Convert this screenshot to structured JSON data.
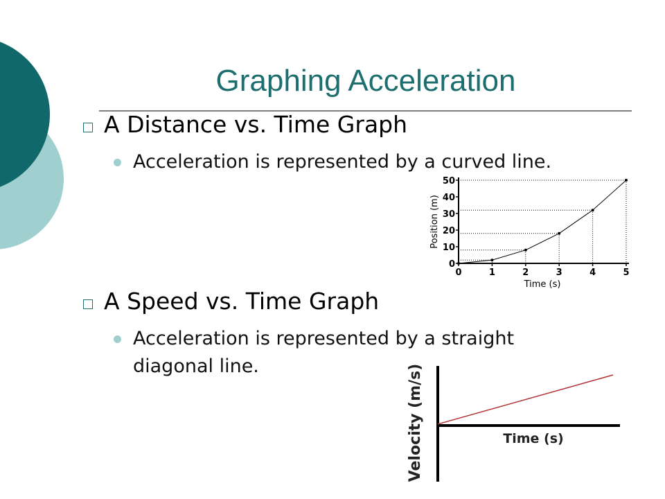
{
  "slide": {
    "title": "Graphing Acceleration",
    "sections": [
      {
        "heading": "A Distance vs. Time Graph",
        "points": [
          "Acceleration is represented by a curved line."
        ]
      },
      {
        "heading": "A Speed vs. Time Graph",
        "points": [
          "Acceleration is represented by a straight diagonal line."
        ]
      }
    ],
    "speed_graph": {
      "x_label": "Time (s)",
      "y_label": "Velocity (m/s)"
    }
  },
  "chart_data": {
    "type": "line",
    "x_label": "Time (s)",
    "y_label": "Position (m)",
    "x": [
      0,
      1,
      2,
      3,
      4,
      5
    ],
    "series": [
      {
        "color": "#000000",
        "values": [
          0,
          2,
          8,
          18,
          32,
          50
        ]
      }
    ],
    "xlim": [
      0,
      5
    ],
    "xticks": [
      0,
      1,
      2,
      3,
      4,
      5
    ],
    "ylim": [
      0,
      50
    ],
    "yticks": [
      0,
      10,
      20,
      30,
      40,
      50
    ]
  }
}
